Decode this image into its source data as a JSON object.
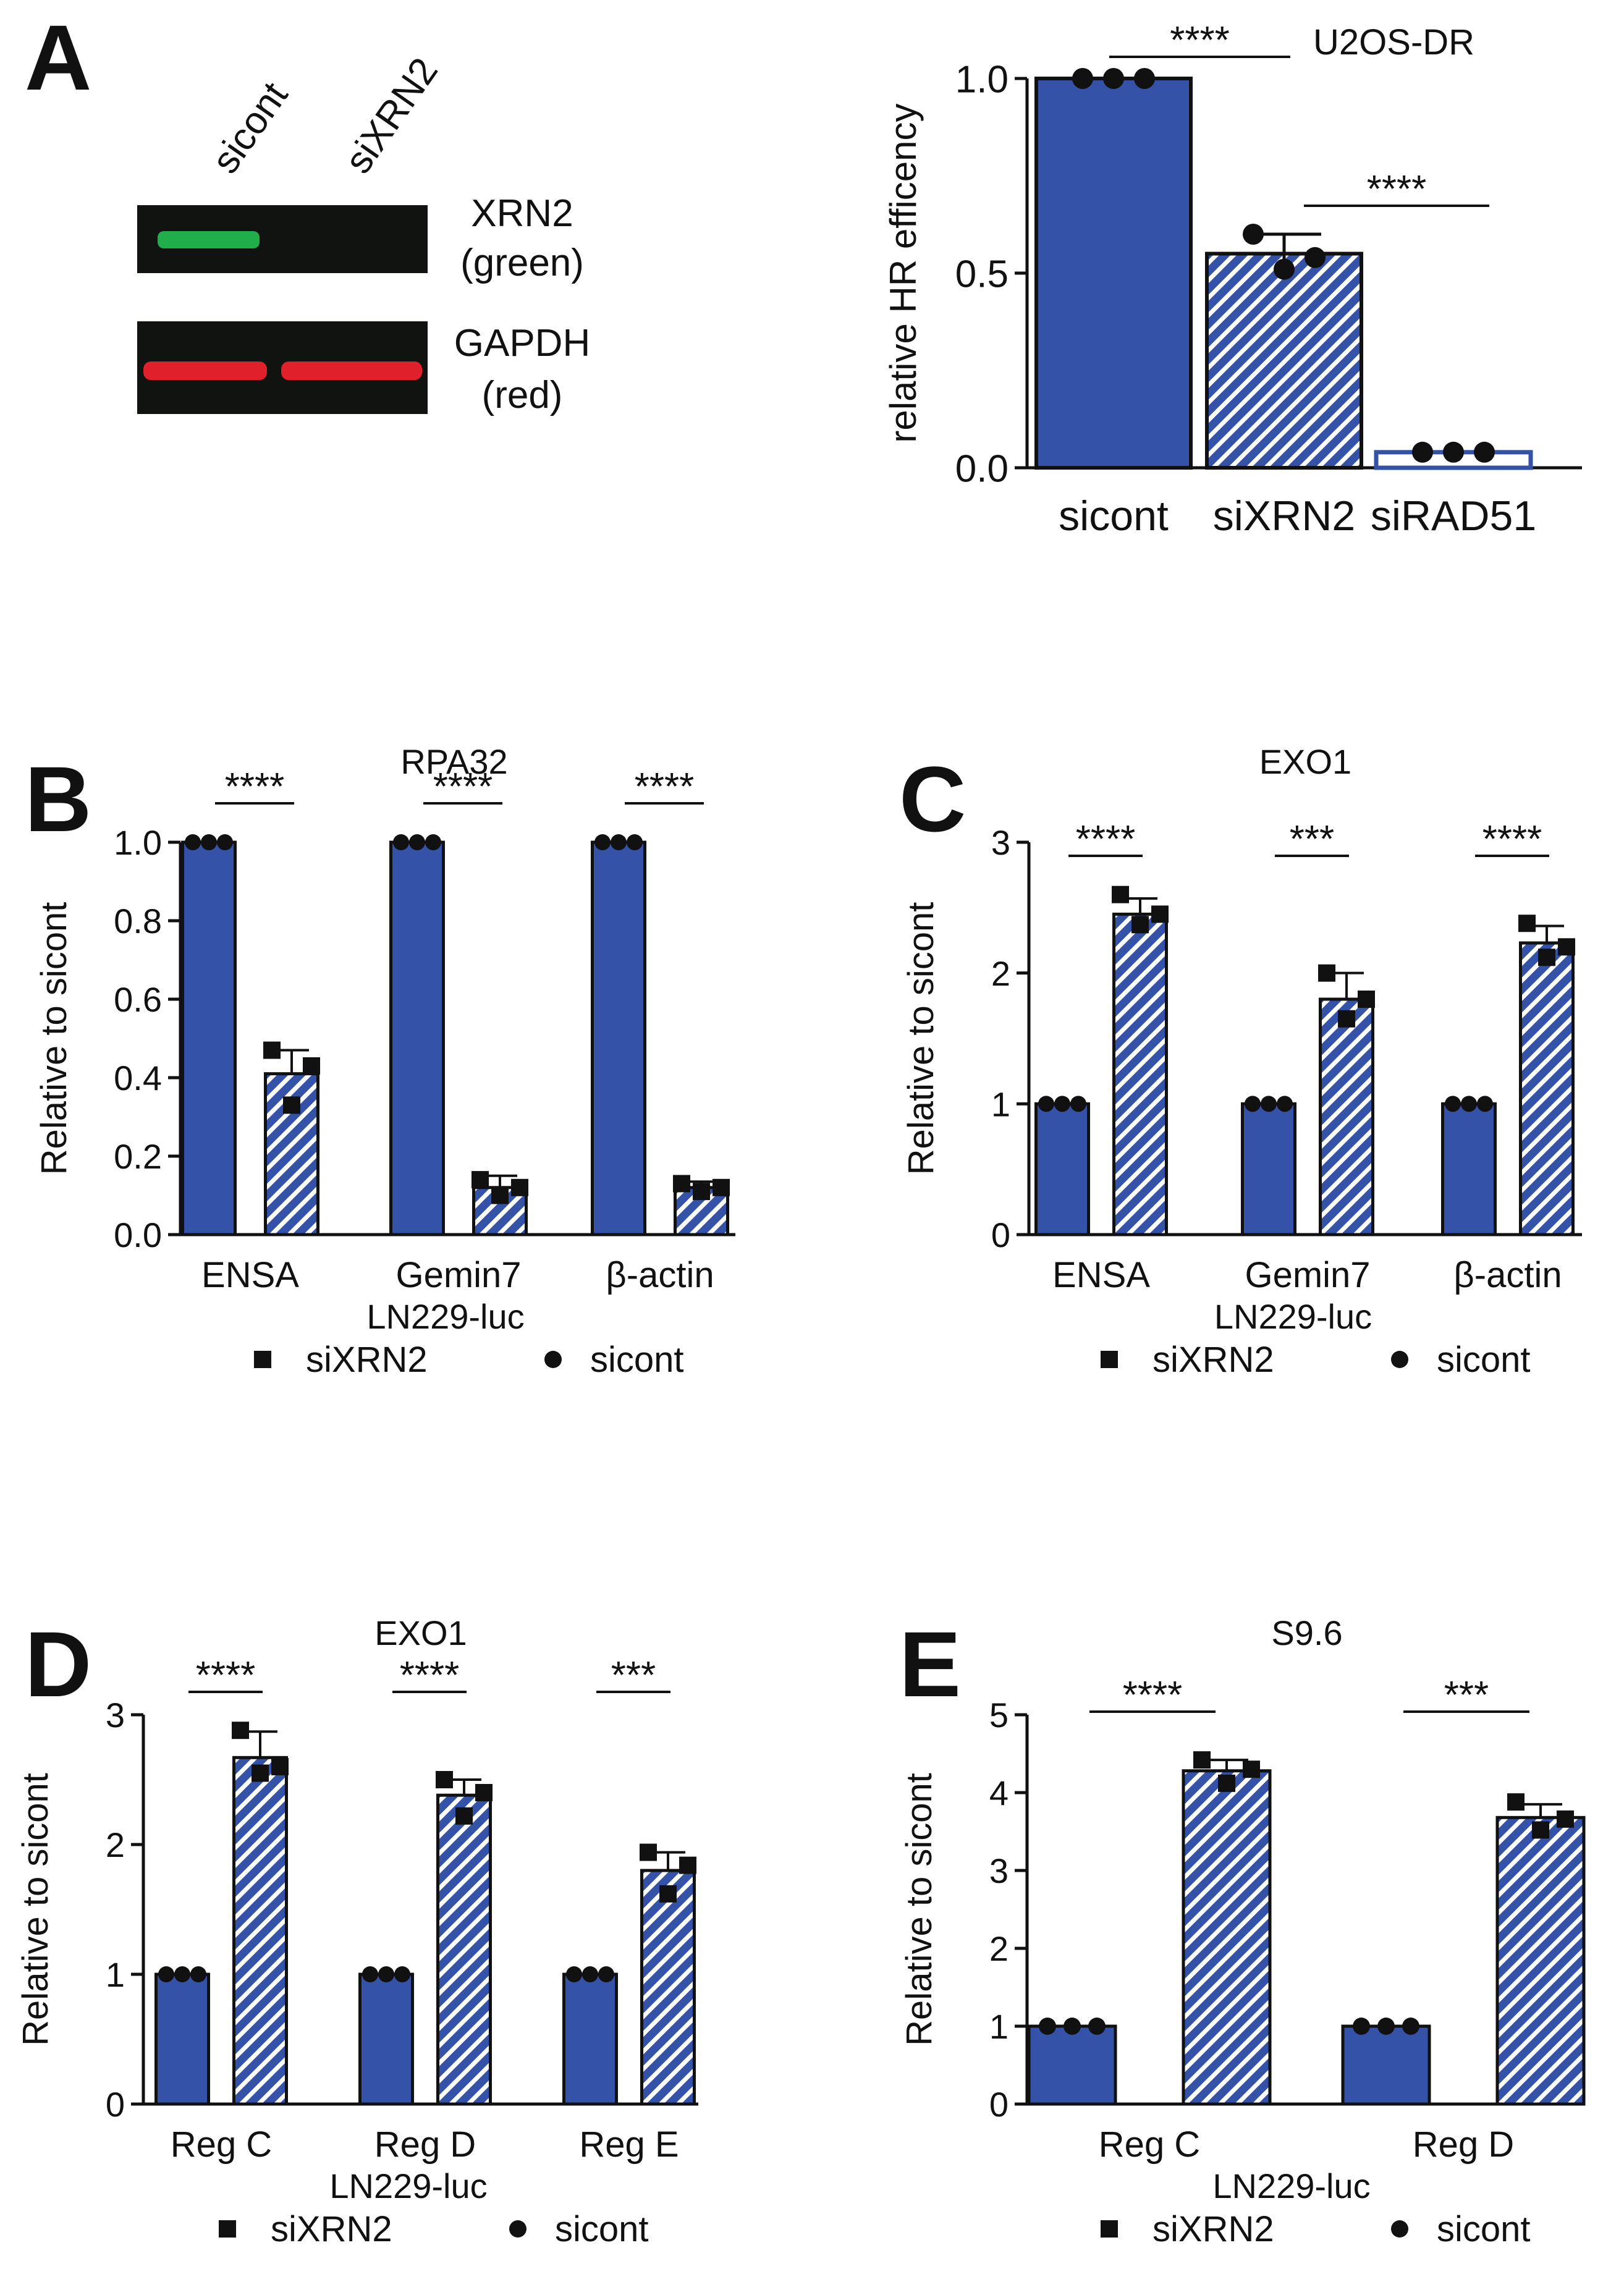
{
  "figure": {
    "panel_letters": [
      "A",
      "B",
      "C",
      "D",
      "E"
    ],
    "blot": {
      "lanes": [
        "sicont",
        "siXRN2"
      ],
      "bands": [
        {
          "label_line1": "XRN2",
          "label_line2": "(green)",
          "color": "#1fae4a",
          "present": [
            true,
            false
          ]
        },
        {
          "label_line1": "GAPDH",
          "label_line2": "(red)",
          "color": "#e0202a",
          "present": [
            true,
            true
          ]
        }
      ]
    },
    "colors": {
      "bar_fill": "#3452a8",
      "hatch_line": "#ffffff",
      "edge": "#111111"
    }
  },
  "chart_data": [
    {
      "panel": "A",
      "type": "bar",
      "title": "U2OS-DR",
      "ylabel": "relative HR efficency",
      "xlabel": "",
      "ylim": [
        0,
        1.0
      ],
      "yticks": [
        "0.0",
        "0.5",
        "1.0"
      ],
      "categories": [
        "sicont",
        "siXRN2",
        "siRAD51"
      ],
      "values": [
        1.0,
        0.55,
        0.04
      ],
      "errors": [
        0,
        0.05,
        0
      ],
      "fills": [
        "solid",
        "hatch",
        "white"
      ],
      "points": [
        [
          1.0,
          1.0,
          1.0
        ],
        [
          0.6,
          0.51,
          0.54
        ],
        [
          0.04,
          0.04,
          0.04
        ]
      ],
      "marker": "circle",
      "significance": [
        {
          "from": 0,
          "to": 1,
          "label": "****"
        },
        {
          "from": 1,
          "to": 2,
          "label": "****"
        }
      ]
    },
    {
      "panel": "B",
      "type": "bar",
      "title": "RPA32",
      "ylabel": "Relative to sicont",
      "xlabel": "LN229-luc",
      "ylim": [
        0,
        1.0
      ],
      "yticks": [
        "0.0",
        "0.2",
        "0.4",
        "0.6",
        "0.8",
        "1.0"
      ],
      "categories": [
        "ENSA",
        "Gemin7",
        "β-actin"
      ],
      "series": [
        {
          "name": "sicont",
          "marker": "circle",
          "fill": "solid",
          "values": [
            1.0,
            1.0,
            1.0
          ],
          "errors": [
            0,
            0,
            0
          ],
          "points": [
            [
              1.0,
              1.0,
              1.0
            ],
            [
              1.0,
              1.0,
              1.0
            ],
            [
              1.0,
              1.0,
              1.0
            ]
          ]
        },
        {
          "name": "siXRN2",
          "marker": "square",
          "fill": "hatch",
          "values": [
            0.41,
            0.12,
            0.12
          ],
          "errors": [
            0.06,
            0.03,
            0.015
          ],
          "points": [
            [
              0.47,
              0.33,
              0.43
            ],
            [
              0.14,
              0.1,
              0.12
            ],
            [
              0.13,
              0.11,
              0.12
            ]
          ]
        }
      ],
      "significance": [
        "****",
        "****",
        "****"
      ],
      "legend": [
        "siXRN2",
        "sicont"
      ]
    },
    {
      "panel": "C",
      "type": "bar",
      "title": "EXO1",
      "ylabel": "Relative to sicont",
      "xlabel": "LN229-luc",
      "ylim": [
        0,
        3
      ],
      "yticks": [
        "0",
        "1",
        "2",
        "3"
      ],
      "categories": [
        "ENSA",
        "Gemin7",
        "β-actin"
      ],
      "series": [
        {
          "name": "sicont",
          "marker": "circle",
          "fill": "solid",
          "values": [
            1.0,
            1.0,
            1.0
          ],
          "errors": [
            0,
            0,
            0
          ],
          "points": [
            [
              1.0,
              1.0,
              1.0
            ],
            [
              1.0,
              1.0,
              1.0
            ],
            [
              1.0,
              1.0,
              1.0
            ]
          ]
        },
        {
          "name": "siXRN2",
          "marker": "square",
          "fill": "hatch",
          "values": [
            2.45,
            1.8,
            2.23
          ],
          "errors": [
            0.12,
            0.2,
            0.13
          ],
          "points": [
            [
              2.6,
              2.37,
              2.45
            ],
            [
              2.0,
              1.65,
              1.8
            ],
            [
              2.38,
              2.12,
              2.2
            ]
          ]
        }
      ],
      "significance": [
        "****",
        "***",
        "****"
      ],
      "legend": [
        "siXRN2",
        "sicont"
      ]
    },
    {
      "panel": "D",
      "type": "bar",
      "title": "EXO1",
      "ylabel": "Relative to sicont",
      "xlabel": "LN229-luc",
      "ylim": [
        0,
        3
      ],
      "yticks": [
        "0",
        "1",
        "2",
        "3"
      ],
      "categories": [
        "Reg C",
        "Reg D",
        "Reg E"
      ],
      "series": [
        {
          "name": "sicont",
          "marker": "circle",
          "fill": "solid",
          "values": [
            1.0,
            1.0,
            1.0
          ],
          "errors": [
            0,
            0,
            0
          ],
          "points": [
            [
              1.0,
              1.0,
              1.0
            ],
            [
              1.0,
              1.0,
              1.0
            ],
            [
              1.0,
              1.0,
              1.0
            ]
          ]
        },
        {
          "name": "siXRN2",
          "marker": "square",
          "fill": "hatch",
          "values": [
            2.67,
            2.38,
            1.8
          ],
          "errors": [
            0.2,
            0.12,
            0.14
          ],
          "points": [
            [
              2.88,
              2.55,
              2.6
            ],
            [
              2.5,
              2.22,
              2.4
            ],
            [
              1.94,
              1.62,
              1.84
            ]
          ]
        }
      ],
      "significance": [
        "****",
        "****",
        "***"
      ],
      "legend": [
        "siXRN2",
        "sicont"
      ]
    },
    {
      "panel": "E",
      "type": "bar",
      "title": "S9.6",
      "ylabel": "Relative to sicont",
      "xlabel": "LN229-luc",
      "ylim": [
        0,
        5
      ],
      "yticks": [
        "0",
        "1",
        "2",
        "3",
        "4",
        "5"
      ],
      "categories": [
        "Reg C",
        "Reg D"
      ],
      "series": [
        {
          "name": "sicont",
          "marker": "circle",
          "fill": "solid",
          "values": [
            1.0,
            1.0
          ],
          "errors": [
            0,
            0
          ],
          "points": [
            [
              1.0,
              1.0,
              1.0
            ],
            [
              1.0,
              1.0,
              1.0
            ]
          ]
        },
        {
          "name": "siXRN2",
          "marker": "square",
          "fill": "hatch",
          "values": [
            4.28,
            3.68
          ],
          "errors": [
            0.14,
            0.17
          ],
          "points": [
            [
              4.42,
              4.12,
              4.3
            ],
            [
              3.88,
              3.52,
              3.66
            ]
          ]
        }
      ],
      "significance": [
        "****",
        "***"
      ],
      "legend": [
        "siXRN2",
        "sicont"
      ]
    }
  ]
}
